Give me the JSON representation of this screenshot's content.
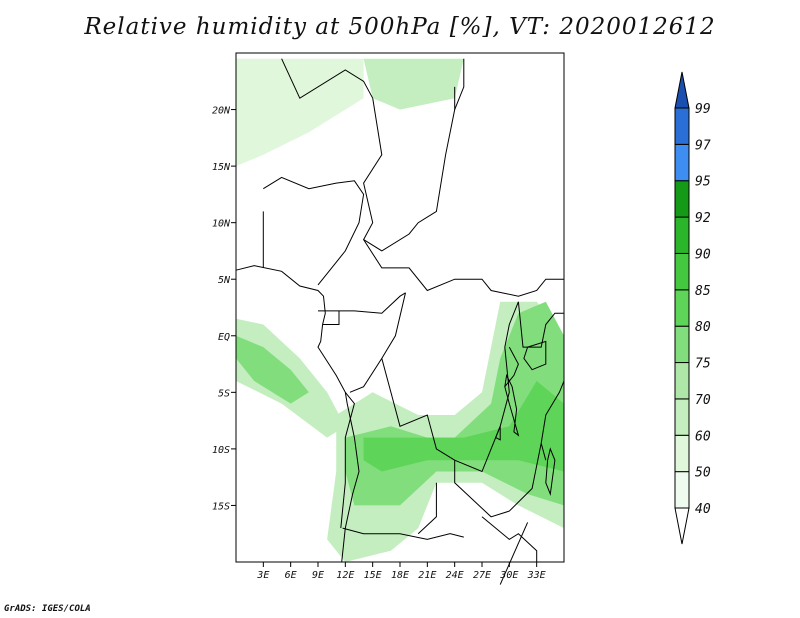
{
  "title": "Relative humidity at 500hPa [%], VT: 2020012612",
  "footer": "GrADS: IGES/COLA",
  "map": {
    "lon_range": [
      0,
      36
    ],
    "lat_range": [
      -20,
      25
    ],
    "lat_ticks": [
      {
        "value": 20,
        "label": "20N"
      },
      {
        "value": 15,
        "label": "15N"
      },
      {
        "value": 10,
        "label": "10N"
      },
      {
        "value": 5,
        "label": "5N"
      },
      {
        "value": 0,
        "label": "EQ"
      },
      {
        "value": -5,
        "label": "5S"
      },
      {
        "value": -10,
        "label": "10S"
      },
      {
        "value": -15,
        "label": "15S"
      }
    ],
    "lon_ticks": [
      {
        "value": 3,
        "label": "3E"
      },
      {
        "value": 6,
        "label": "6E"
      },
      {
        "value": 9,
        "label": "9E"
      },
      {
        "value": 12,
        "label": "12E"
      },
      {
        "value": 15,
        "label": "15E"
      },
      {
        "value": 18,
        "label": "18E"
      },
      {
        "value": 21,
        "label": "21E"
      },
      {
        "value": 24,
        "label": "24E"
      },
      {
        "value": 27,
        "label": "27E"
      },
      {
        "value": 30,
        "label": "30E"
      },
      {
        "value": 33,
        "label": "33E"
      }
    ],
    "humid_regions": [
      {
        "name": "northwest-humid-band",
        "level": 50,
        "color": "#e0f7dc",
        "points": [
          [
            0,
            24.5
          ],
          [
            14,
            24.5
          ],
          [
            14,
            21
          ],
          [
            8,
            18
          ],
          [
            3,
            16
          ],
          [
            0,
            15
          ]
        ]
      },
      {
        "name": "north-central-humid",
        "level": 60,
        "color": "#c4eec0",
        "points": [
          [
            14,
            24.5
          ],
          [
            25,
            24.5
          ],
          [
            24,
            21
          ],
          [
            18,
            20
          ],
          [
            15,
            21
          ]
        ]
      },
      {
        "name": "gulf-of-guinea-humid",
        "level": 60,
        "color": "#c4eec0",
        "points": [
          [
            0,
            1.5
          ],
          [
            3,
            1
          ],
          [
            7,
            -2
          ],
          [
            10,
            -5
          ],
          [
            12,
            -8
          ],
          [
            10,
            -9
          ],
          [
            5,
            -6
          ],
          [
            0,
            -4
          ]
        ]
      },
      {
        "name": "gulf-of-guinea-core",
        "level": 75,
        "color": "#82de7c",
        "points": [
          [
            0,
            0
          ],
          [
            3,
            -1
          ],
          [
            6,
            -3
          ],
          [
            8,
            -5
          ],
          [
            6,
            -6
          ],
          [
            2,
            -4
          ],
          [
            0,
            -2
          ]
        ]
      },
      {
        "name": "central-africa-humid",
        "level": 60,
        "color": "#c4eec0",
        "points": [
          [
            11,
            -7
          ],
          [
            15,
            -5
          ],
          [
            20,
            -7
          ],
          [
            24,
            -7
          ],
          [
            27,
            -5
          ],
          [
            28,
            -1
          ],
          [
            29,
            3
          ],
          [
            33,
            3
          ],
          [
            36,
            0
          ],
          [
            36,
            -17
          ],
          [
            31,
            -15
          ],
          [
            27,
            -13
          ],
          [
            22,
            -13
          ],
          [
            20,
            -17
          ],
          [
            17,
            -19
          ],
          [
            12,
            -20
          ],
          [
            10,
            -18
          ],
          [
            11,
            -12
          ]
        ]
      },
      {
        "name": "central-africa-mid",
        "level": 75,
        "color": "#82de7c",
        "points": [
          [
            12,
            -9
          ],
          [
            17,
            -8
          ],
          [
            21,
            -9
          ],
          [
            24,
            -9
          ],
          [
            28,
            -6
          ],
          [
            29,
            -2
          ],
          [
            31,
            2
          ],
          [
            34,
            3
          ],
          [
            36,
            0
          ],
          [
            36,
            -15
          ],
          [
            32,
            -14
          ],
          [
            27,
            -12
          ],
          [
            22,
            -12
          ],
          [
            18,
            -15
          ],
          [
            13,
            -15
          ],
          [
            12,
            -12
          ]
        ]
      },
      {
        "name": "central-africa-core",
        "level": 85,
        "color": "#5ed458",
        "points": [
          [
            14,
            -9
          ],
          [
            20,
            -9
          ],
          [
            25,
            -9
          ],
          [
            30,
            -8
          ],
          [
            33,
            -4
          ],
          [
            36,
            -6
          ],
          [
            36,
            -12
          ],
          [
            31,
            -11
          ],
          [
            26,
            -11
          ],
          [
            21,
            -11
          ],
          [
            16,
            -12
          ],
          [
            14,
            -11
          ]
        ]
      }
    ],
    "borders": [
      [
        [
          0,
          24.5
        ],
        [
          0,
          -20
        ]
      ],
      [
        [
          5,
          24.5
        ],
        [
          7,
          21
        ],
        [
          12,
          23.5
        ],
        [
          14,
          22.5
        ],
        [
          15,
          21
        ]
      ],
      [
        [
          15,
          21
        ],
        [
          16,
          16
        ],
        [
          14,
          13.5
        ],
        [
          15,
          10
        ],
        [
          14,
          8.5
        ],
        [
          16,
          7.5
        ],
        [
          19,
          9
        ],
        [
          20,
          10
        ],
        [
          22,
          11
        ],
        [
          23,
          16
        ],
        [
          24,
          20
        ],
        [
          24,
          22
        ]
      ],
      [
        [
          25,
          24.5
        ],
        [
          25,
          22
        ],
        [
          24,
          20
        ]
      ],
      [
        [
          3,
          11
        ],
        [
          3,
          7
        ],
        [
          3,
          6
        ]
      ],
      [
        [
          3,
          13
        ],
        [
          5,
          14
        ],
        [
          8,
          13
        ],
        [
          11,
          13.5
        ],
        [
          13,
          13.7
        ],
        [
          14,
          12.5
        ],
        [
          13.5,
          10
        ],
        [
          12,
          7.5
        ],
        [
          11,
          6.5
        ],
        [
          9,
          4.5
        ]
      ],
      [
        [
          14,
          8.5
        ],
        [
          16,
          6
        ],
        [
          19,
          6
        ],
        [
          21,
          4
        ],
        [
          24,
          5
        ],
        [
          27,
          5
        ],
        [
          28,
          4
        ],
        [
          31,
          3.5
        ],
        [
          33,
          4
        ],
        [
          34,
          5
        ],
        [
          36,
          5
        ]
      ],
      [
        [
          9,
          2.2
        ],
        [
          11.3,
          2.2
        ],
        [
          13,
          2.2
        ],
        [
          16,
          2
        ],
        [
          18,
          3.5
        ],
        [
          18.6,
          3.8
        ]
      ],
      [
        [
          11.3,
          2.2
        ],
        [
          11.3,
          1
        ],
        [
          9.5,
          1
        ]
      ],
      [
        [
          18.6,
          3.8
        ],
        [
          17.5,
          0
        ],
        [
          16,
          -2
        ],
        [
          14,
          -4.5
        ],
        [
          12.5,
          -5
        ]
      ],
      [
        [
          16,
          -2
        ],
        [
          17,
          -5
        ],
        [
          18,
          -8
        ],
        [
          21,
          -7
        ],
        [
          22,
          -10
        ],
        [
          24,
          -11
        ],
        [
          27,
          -12
        ],
        [
          29,
          -8
        ],
        [
          30,
          -5
        ],
        [
          29.5,
          -1
        ],
        [
          30,
          1
        ],
        [
          31,
          3
        ]
      ],
      [
        [
          12,
          -5
        ],
        [
          13,
          -6
        ],
        [
          12,
          -9
        ],
        [
          12,
          -13
        ],
        [
          11.5,
          -17
        ]
      ],
      [
        [
          11.7,
          -17
        ],
        [
          14,
          -17.5
        ],
        [
          18,
          -17.5
        ],
        [
          21,
          -18
        ],
        [
          23.5,
          -17.5
        ],
        [
          25,
          -17.8
        ]
      ],
      [
        [
          22,
          -13
        ],
        [
          22,
          -16
        ],
        [
          20,
          -17.5
        ]
      ],
      [
        [
          24,
          -11
        ],
        [
          24,
          -13
        ],
        [
          28,
          -16
        ],
        [
          30,
          -15.5
        ],
        [
          32.5,
          -13.5
        ],
        [
          33.5,
          -9.5
        ],
        [
          34,
          -11
        ]
      ],
      [
        [
          33.5,
          -9.5
        ],
        [
          34,
          -7
        ],
        [
          35.5,
          -5
        ],
        [
          36,
          -4
        ]
      ],
      [
        [
          31,
          3
        ],
        [
          31.5,
          -1
        ],
        [
          33.5,
          -1
        ],
        [
          34,
          1
        ],
        [
          35,
          2
        ],
        [
          36,
          2
        ]
      ],
      [
        [
          30,
          -1
        ],
        [
          31,
          -2.5
        ],
        [
          30.5,
          -3.5
        ],
        [
          29.5,
          -4.5
        ]
      ],
      [
        [
          27,
          -16
        ],
        [
          30,
          -18
        ],
        [
          31,
          -17.5
        ],
        [
          33,
          -19
        ],
        [
          33,
          -20
        ]
      ],
      [
        [
          29,
          -22
        ],
        [
          32,
          -16.5
        ]
      ]
    ],
    "lakes": [
      [
        [
          29.7,
          -3.5
        ],
        [
          30.3,
          -4.5
        ],
        [
          30.8,
          -6.5
        ],
        [
          30.5,
          -8.5
        ],
        [
          31,
          -8.8
        ],
        [
          30,
          -6
        ],
        [
          29.5,
          -4.5
        ]
      ],
      [
        [
          32,
          -1
        ],
        [
          34,
          -0.5
        ],
        [
          34,
          -2.5
        ],
        [
          32.5,
          -3
        ],
        [
          31.6,
          -2
        ]
      ],
      [
        [
          34.5,
          -10
        ],
        [
          35,
          -11
        ],
        [
          34.5,
          -14
        ],
        [
          34,
          -13
        ],
        [
          34.2,
          -11
        ]
      ],
      [
        [
          28.5,
          -9
        ],
        [
          29,
          -9.2
        ],
        [
          29,
          -8
        ]
      ]
    ],
    "coast": [
      [
        [
          0,
          5.8
        ],
        [
          2,
          6.2
        ],
        [
          5,
          5.7
        ],
        [
          7,
          4.4
        ],
        [
          9,
          4
        ],
        [
          9.6,
          3.5
        ],
        [
          9.8,
          2
        ],
        [
          9.5,
          1
        ],
        [
          9.3,
          -0.5
        ],
        [
          9,
          -1
        ],
        [
          11,
          -3.5
        ],
        [
          12,
          -5
        ],
        [
          12.2,
          -6
        ],
        [
          13,
          -9
        ],
        [
          13.5,
          -12
        ],
        [
          12.8,
          -14
        ],
        [
          12,
          -17
        ],
        [
          11.6,
          -20
        ]
      ]
    ]
  },
  "colorbar": {
    "levels": [
      {
        "label": "40",
        "color": "#ffffff"
      },
      {
        "label": "50",
        "color": "#f0fbef"
      },
      {
        "label": "60",
        "color": "#e0f7dc"
      },
      {
        "label": "70",
        "color": "#c4eec0"
      },
      {
        "label": "75",
        "color": "#aee7a8"
      },
      {
        "label": "80",
        "color": "#82de7c"
      },
      {
        "label": "85",
        "color": "#5ed458"
      },
      {
        "label": "90",
        "color": "#44c83f"
      },
      {
        "label": "92",
        "color": "#2ab52a"
      },
      {
        "label": "95",
        "color": "#159a18"
      },
      {
        "label": "97",
        "color": "#3d8ef0"
      },
      {
        "label": "99",
        "color": "#2a6fd6"
      },
      {
        "label": "",
        "color": "#1a4fb0"
      }
    ]
  }
}
